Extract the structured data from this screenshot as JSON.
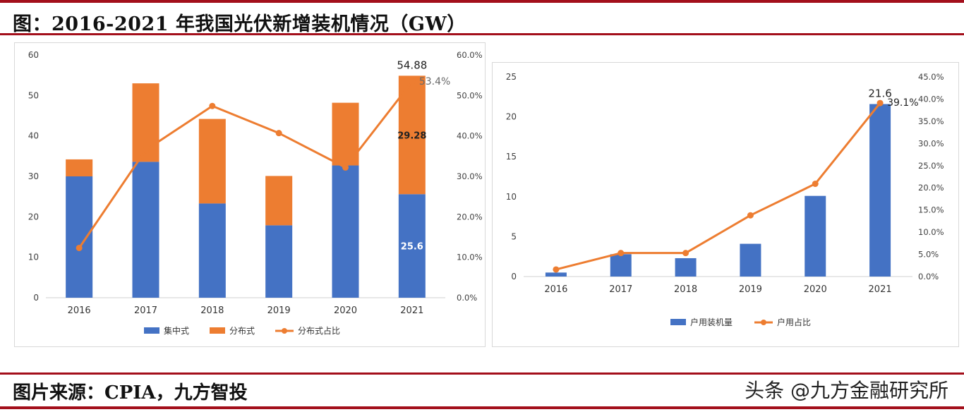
{
  "header": {
    "title": "图：2016-2021 年我国光伏新增装机情况（GW）"
  },
  "footer": {
    "source": "图片来源：CPIA，九方智投",
    "watermark": "头条 @九方金融研究所"
  },
  "colors": {
    "blue": "#4472c4",
    "orange": "#ed7d31",
    "axis_text": "#404040",
    "brand_red": "#a30f1b"
  },
  "chart_data": [
    {
      "type": "bar",
      "stacked": true,
      "categories": [
        "2016",
        "2017",
        "2018",
        "2019",
        "2020",
        "2021"
      ],
      "series": [
        {
          "name": "集中式",
          "kind": "bar",
          "color": "#4472c4",
          "values": [
            30.0,
            33.6,
            23.3,
            17.9,
            32.7,
            25.6
          ]
        },
        {
          "name": "分布式",
          "kind": "bar",
          "color": "#ed7d31",
          "values": [
            4.2,
            19.4,
            20.9,
            12.2,
            15.5,
            29.28
          ]
        },
        {
          "name": "分布式占比",
          "kind": "line",
          "axis": "right",
          "color": "#ed7d31",
          "values": [
            12.3,
            36.5,
            47.4,
            40.7,
            32.2,
            53.4
          ]
        }
      ],
      "ylim": [
        0,
        60
      ],
      "yticks": [
        "0",
        "10",
        "20",
        "30",
        "40",
        "50",
        "60"
      ],
      "y2lim": [
        0,
        60
      ],
      "y2ticks": [
        "0.0%",
        "10.0%",
        "20.0%",
        "30.0%",
        "40.0%",
        "50.0%",
        "60.0%"
      ],
      "annotations": [
        {
          "text": "54.88",
          "category": "2021",
          "kind": "total"
        },
        {
          "text": "53.4%",
          "category": "2021",
          "kind": "line"
        },
        {
          "text": "29.28",
          "category": "2021",
          "kind": "top-seg"
        },
        {
          "text": "25.6",
          "category": "2021",
          "kind": "bottom-seg"
        }
      ],
      "legend_position": "bottom"
    },
    {
      "type": "bar",
      "categories": [
        "2016",
        "2017",
        "2018",
        "2019",
        "2020",
        "2021"
      ],
      "series": [
        {
          "name": "户用装机量",
          "kind": "bar",
          "color": "#4472c4",
          "values": [
            0.5,
            2.8,
            2.3,
            4.1,
            10.1,
            21.6
          ]
        },
        {
          "name": "户用占比",
          "kind": "line",
          "axis": "right",
          "color": "#ed7d31",
          "values": [
            1.6,
            5.3,
            5.3,
            13.8,
            20.9,
            39.1
          ]
        }
      ],
      "ylim": [
        0,
        25
      ],
      "yticks": [
        "0",
        "5",
        "10",
        "15",
        "20",
        "25"
      ],
      "y2lim": [
        0,
        45
      ],
      "y2ticks": [
        "0.0%",
        "5.0%",
        "10.0%",
        "15.0%",
        "20.0%",
        "25.0%",
        "30.0%",
        "35.0%",
        "40.0%",
        "45.0%"
      ],
      "annotations": [
        {
          "text": "21.6",
          "category": "2021",
          "kind": "total"
        },
        {
          "text": "39.1%",
          "category": "2021",
          "kind": "line"
        }
      ],
      "legend_position": "bottom"
    }
  ]
}
